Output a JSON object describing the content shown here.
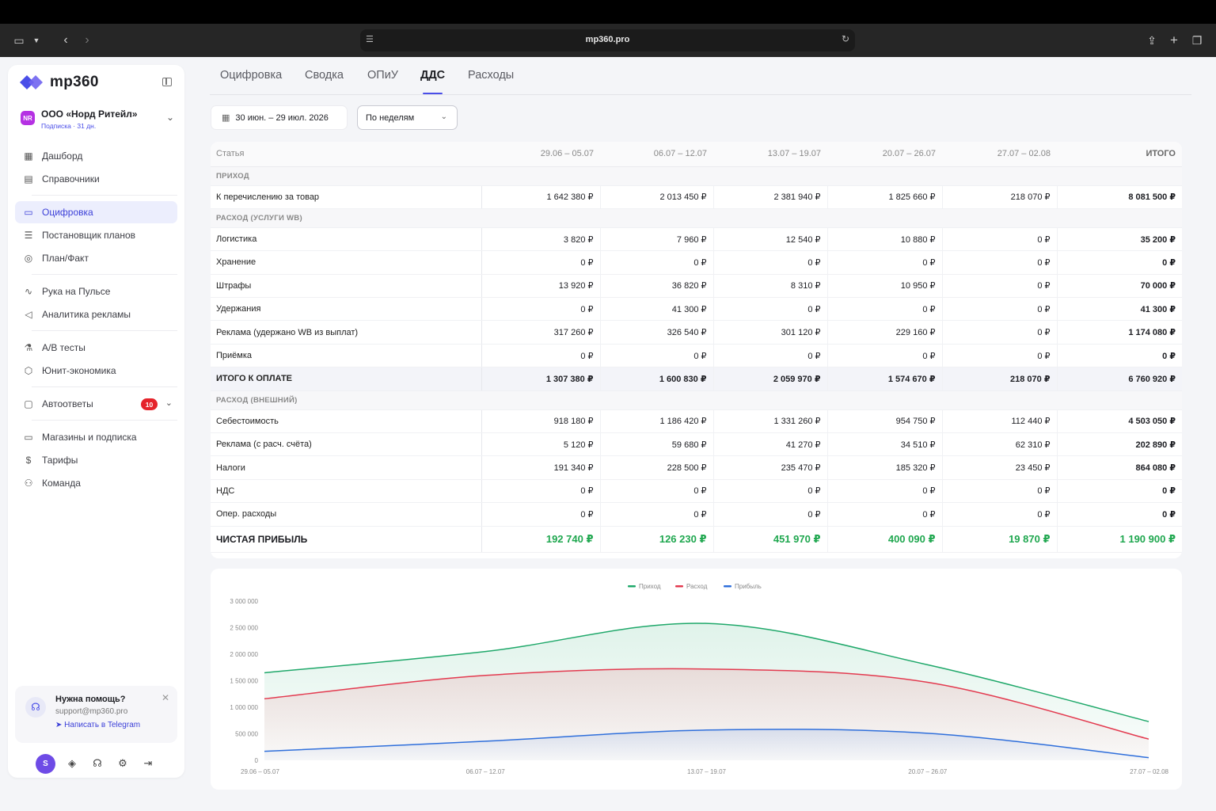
{
  "browser": {
    "url": "mp360.pro"
  },
  "sidebar": {
    "logo_text": "mp360",
    "org": {
      "badge": "NR",
      "name": "ООО «Норд Ритейл»",
      "subscription": "Подписка · 31 дн."
    },
    "items": [
      {
        "label": "Дашборд"
      },
      {
        "label": "Справочники"
      },
      {
        "label": "Оцифровка"
      },
      {
        "label": "Постановщик планов"
      },
      {
        "label": "План/Факт"
      },
      {
        "label": "Рука на Пульсе"
      },
      {
        "label": "Аналитика рекламы"
      },
      {
        "label": "A/B тесты"
      },
      {
        "label": "Юнит-экономика"
      },
      {
        "label": "Автоответы",
        "badge": "10"
      },
      {
        "label": "Магазины и подписка"
      },
      {
        "label": "Тарифы"
      },
      {
        "label": "Команда"
      }
    ],
    "help": {
      "title": "Нужна помощь?",
      "email": "support@mp360.pro",
      "telegram": "Написать в Telegram"
    },
    "user_initial": "S"
  },
  "tabs": [
    "Оцифровка",
    "Сводка",
    "ОПиУ",
    "ДДС",
    "Расходы"
  ],
  "filters": {
    "date_range": "30 июн. – 29 июл. 2026",
    "grouping": "По неделям"
  },
  "table": {
    "headers": [
      "Статья",
      "29.06 – 05.07",
      "06.07 – 12.07",
      "13.07 – 19.07",
      "20.07 – 26.07",
      "27.07 – 02.08",
      "ИТОГО"
    ],
    "rows": [
      {
        "type": "section",
        "label": "ПРИХОД"
      },
      {
        "type": "row",
        "cells": [
          "К перечислению за товар",
          "1 642 380 ₽",
          "2 013 450 ₽",
          "2 381 940 ₽",
          "1 825 660 ₽",
          "218 070 ₽",
          "8 081 500 ₽"
        ]
      },
      {
        "type": "section",
        "label": "РАСХОД (УСЛУГИ WB)"
      },
      {
        "type": "row",
        "cells": [
          "Логистика",
          "3 820 ₽",
          "7 960 ₽",
          "12 540 ₽",
          "10 880 ₽",
          "0 ₽",
          "35 200 ₽"
        ]
      },
      {
        "type": "row",
        "cells": [
          "Хранение",
          "0 ₽",
          "0 ₽",
          "0 ₽",
          "0 ₽",
          "0 ₽",
          "0 ₽"
        ]
      },
      {
        "type": "row",
        "cells": [
          "Штрафы",
          "13 920 ₽",
          "36 820 ₽",
          "8 310 ₽",
          "10 950 ₽",
          "0 ₽",
          "70 000 ₽"
        ]
      },
      {
        "type": "row",
        "cells": [
          "Удержания",
          "0 ₽",
          "41 300 ₽",
          "0 ₽",
          "0 ₽",
          "0 ₽",
          "41 300 ₽"
        ]
      },
      {
        "type": "row",
        "cells": [
          "Реклама (удержано WB из выплат)",
          "317 260 ₽",
          "326 540 ₽",
          "301 120 ₽",
          "229 160 ₽",
          "0 ₽",
          "1 174 080 ₽"
        ]
      },
      {
        "type": "row",
        "cells": [
          "Приёмка",
          "0 ₽",
          "0 ₽",
          "0 ₽",
          "0 ₽",
          "0 ₽",
          "0 ₽"
        ]
      },
      {
        "type": "sum",
        "cells": [
          "ИТОГО К ОПЛАТЕ",
          "1 307 380 ₽",
          "1 600 830 ₽",
          "2 059 970 ₽",
          "1 574 670 ₽",
          "218 070 ₽",
          "6 760 920 ₽"
        ]
      },
      {
        "type": "section",
        "label": "РАСХОД (ВНЕШНИЙ)"
      },
      {
        "type": "row",
        "cells": [
          "Себестоимость",
          "918 180 ₽",
          "1 186 420 ₽",
          "1 331 260 ₽",
          "954 750 ₽",
          "112 440 ₽",
          "4 503 050 ₽"
        ]
      },
      {
        "type": "row",
        "cells": [
          "Реклама (с расч. счёта)",
          "5 120 ₽",
          "59 680 ₽",
          "41 270 ₽",
          "34 510 ₽",
          "62 310 ₽",
          "202 890 ₽"
        ]
      },
      {
        "type": "row",
        "cells": [
          "Налоги",
          "191 340 ₽",
          "228 500 ₽",
          "235 470 ₽",
          "185 320 ₽",
          "23 450 ₽",
          "864 080 ₽"
        ]
      },
      {
        "type": "row",
        "cells": [
          "НДС",
          "0 ₽",
          "0 ₽",
          "0 ₽",
          "0 ₽",
          "0 ₽",
          "0 ₽"
        ]
      },
      {
        "type": "row",
        "cells": [
          "Опер. расходы",
          "0 ₽",
          "0 ₽",
          "0 ₽",
          "0 ₽",
          "0 ₽",
          "0 ₽"
        ]
      },
      {
        "type": "profit",
        "cells": [
          "ЧИСТАЯ ПРИБЫЛЬ",
          "192 740 ₽",
          "126 230 ₽",
          "451 970 ₽",
          "400 090 ₽",
          "19 870 ₽",
          "1 190 900 ₽"
        ]
      }
    ]
  },
  "chart_data": {
    "type": "area",
    "categories": [
      "29.06 – 05.07",
      "06.07 – 12.07",
      "13.07 – 19.07",
      "20.07 – 26.07",
      "27.07 – 02.08"
    ],
    "ylim": [
      0,
      3000000
    ],
    "yticks": [
      "0",
      "500 000",
      "1 000 000",
      "1 500 000",
      "2 000 000",
      "2 500 000",
      "3 000 000"
    ],
    "legend_position": "top-center",
    "grid": false,
    "series": [
      {
        "name": "Приход",
        "color": "#1fa86a",
        "values": [
          1650000,
          2050000,
          2580000,
          1800000,
          730000
        ]
      },
      {
        "name": "Расход",
        "color": "#e33a4f",
        "values": [
          1160000,
          1600000,
          1720000,
          1470000,
          400000
        ]
      },
      {
        "name": "Прибыль",
        "color": "#2f6fdb",
        "values": [
          170000,
          360000,
          570000,
          510000,
          50000
        ]
      }
    ]
  }
}
